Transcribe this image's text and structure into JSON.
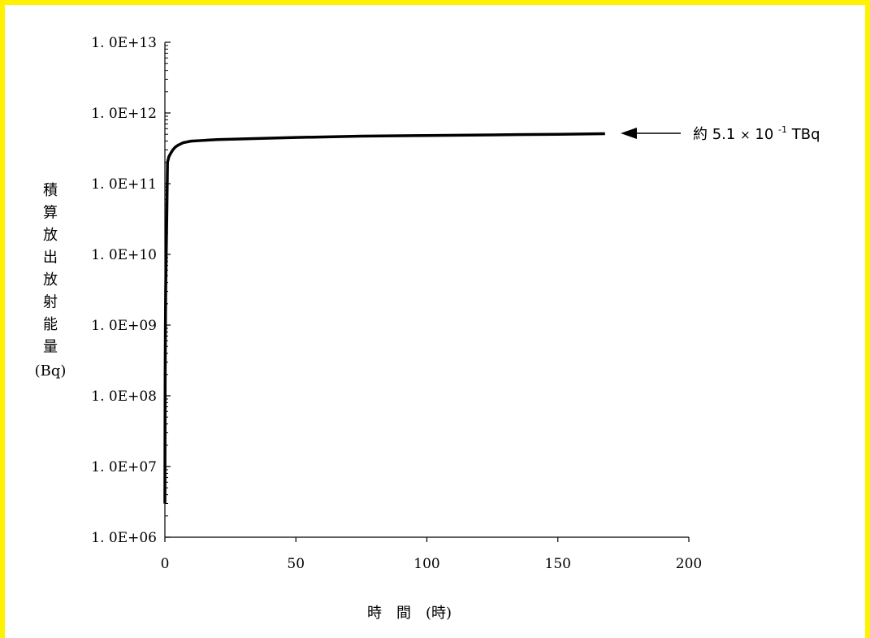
{
  "colors": {
    "frame": "#fff200",
    "line": "#000000",
    "background": "#ffffff"
  },
  "chart_data": {
    "type": "line",
    "scale_y": "log",
    "xlim": [
      0,
      200
    ],
    "ylim": [
      1000000,
      10000000000000
    ],
    "x_ticks": [
      "0",
      "50",
      "100",
      "150",
      "200"
    ],
    "y_ticks": [
      "1. 0E+06",
      "1. 0E+07",
      "1. 0E+08",
      "1. 0E+09",
      "1. 0E+10",
      "1. 0E+11",
      "1. 0E+12",
      "1. 0E+13"
    ],
    "xlabel": "時　間　(時)",
    "ylabel_chars": [
      "積",
      "算",
      "放",
      "出",
      "放",
      "射",
      "能",
      "量",
      "(Bq)"
    ],
    "grid": false,
    "series": [
      {
        "x": [
          0,
          0.05,
          0.1,
          0.2,
          0.3,
          0.5,
          0.7,
          1,
          1.5,
          2,
          3,
          4,
          5,
          7,
          10,
          15,
          20,
          30,
          50,
          75,
          100,
          125,
          150,
          168
        ],
        "y": [
          3000000,
          30000000,
          200000000,
          1000000000,
          3000000000,
          10000000000,
          30000000000,
          200000000000,
          240000000000,
          260000000000,
          300000000000,
          330000000000,
          350000000000,
          380000000000,
          400000000000,
          410000000000,
          420000000000,
          430000000000,
          450000000000,
          470000000000,
          480000000000,
          490000000000,
          500000000000,
          510000000000
        ]
      }
    ],
    "annotation": {
      "prefix": "約 5.1",
      "times": "×",
      "base": "10",
      "exponent": "-1",
      "unit": "TBq"
    }
  }
}
